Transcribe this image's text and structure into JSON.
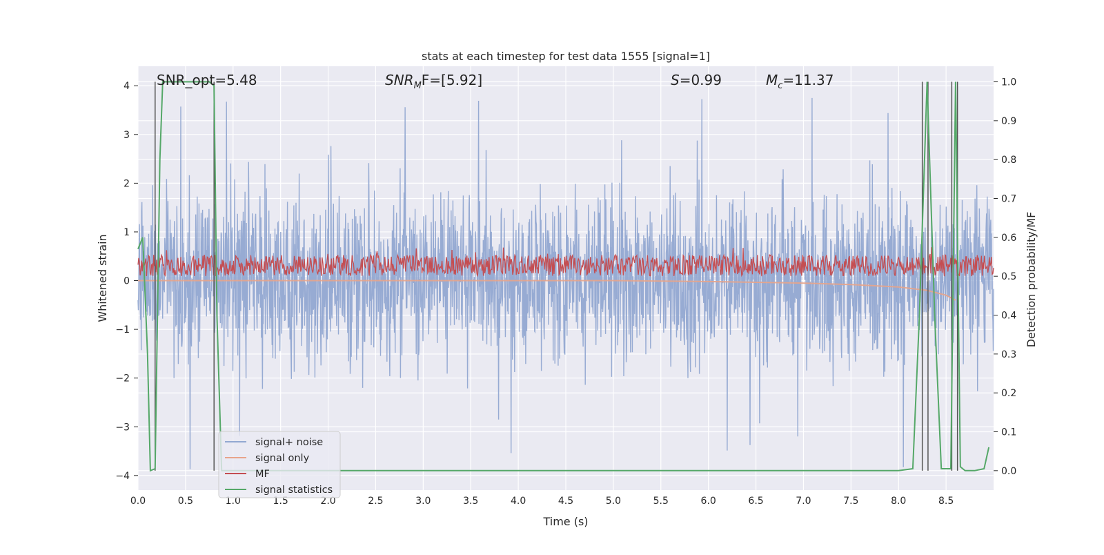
{
  "chart_data": {
    "type": "line",
    "title": "stats at each timestep for test data 1555 [signal=1]",
    "xlabel": "Time (s)",
    "ylabel_left": "Whitened strain",
    "ylabel_right": "Detection probability/MF",
    "xlim": [
      0.0,
      9.0
    ],
    "ylim_left": [
      -4.3,
      4.4
    ],
    "ylim_right": [
      -0.05,
      1.04
    ],
    "xticks": [
      "0.0",
      "0.5",
      "1.0",
      "1.5",
      "2.0",
      "2.5",
      "3.0",
      "3.5",
      "4.0",
      "4.5",
      "5.0",
      "5.5",
      "6.0",
      "6.5",
      "7.0",
      "7.5",
      "8.0",
      "8.5"
    ],
    "yticks_left": [
      "4",
      "3",
      "2",
      "1",
      "0",
      "−1",
      "−2",
      "−3",
      "−4"
    ],
    "yticks_right": [
      "1.0",
      "0.9",
      "0.8",
      "0.7",
      "0.6",
      "0.5",
      "0.4",
      "0.3",
      "0.2",
      "0.1",
      "0.0"
    ],
    "grid": true,
    "legend_position": "lower-left",
    "annotations": {
      "snr_opt": "SNR_opt=5.48",
      "snr_mf_base": "SNR",
      "snr_mf_sub": "M",
      "snr_mf_rest": "F=[5.92]",
      "s_var": "S",
      "s_value": "=0.99",
      "mc_var": "M",
      "mc_sub": "c",
      "mc_value": "=11.37"
    },
    "series": [
      {
        "name": "signal+ noise",
        "color": "#92a8d1",
        "axis": "left",
        "description_envelope": {
          "upper_typical": 1.3,
          "lower_typical": -1.4,
          "max": 3.9,
          "min": -3.9
        }
      },
      {
        "name": "signal only",
        "color": "#e8a48a",
        "axis": "left",
        "x": [
          0.0,
          3.0,
          5.0,
          6.0,
          7.0,
          7.5,
          8.0,
          8.3,
          8.5,
          8.6
        ],
        "y": [
          0.0,
          0.0,
          0.0,
          -0.02,
          -0.05,
          -0.08,
          -0.13,
          -0.2,
          -0.3,
          -0.4
        ]
      },
      {
        "name": "MF",
        "color": "#c44e52",
        "axis": "right",
        "description_band": {
          "low": 0.5,
          "high": 0.555
        }
      },
      {
        "name": "signal statistics",
        "color": "#55a868",
        "axis": "right",
        "x": [
          0.0,
          0.05,
          0.1,
          0.13,
          0.18,
          0.23,
          0.26,
          0.3,
          0.5,
          0.75,
          0.8,
          0.83,
          0.88,
          1.0,
          2.0,
          4.0,
          6.0,
          8.0,
          8.15,
          8.22,
          8.3,
          8.38,
          8.45,
          8.55,
          8.6,
          8.65,
          8.7,
          8.8,
          8.9,
          8.95
        ],
        "y": [
          0.57,
          0.6,
          0.3,
          0.0,
          0.005,
          0.8,
          1.0,
          1.0,
          1.0,
          1.0,
          0.99,
          0.4,
          0.0,
          0.0,
          0.0,
          0.0,
          0.0,
          0.0,
          0.005,
          0.4,
          1.0,
          0.4,
          0.005,
          0.005,
          1.0,
          0.01,
          0.0,
          0.0,
          0.005,
          0.06
        ]
      }
    ],
    "vertical_markers_x": [
      0.18,
      0.8,
      8.25,
      8.31,
      8.56,
      8.62
    ]
  }
}
